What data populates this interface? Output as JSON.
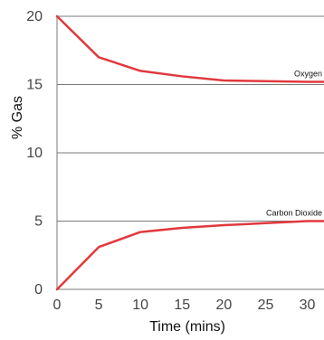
{
  "chart_data": {
    "type": "line",
    "title": "",
    "xlabel": "Time (mins)",
    "ylabel": "% Gas",
    "xlim": [
      0,
      32
    ],
    "ylim": [
      0,
      20
    ],
    "xticks": [
      0,
      5,
      10,
      15,
      20,
      25,
      30
    ],
    "yticks": [
      0,
      5,
      10,
      15,
      20
    ],
    "grid": "horizontal",
    "series": [
      {
        "name": "Oxygen",
        "label_text": "Oxygen",
        "color": "#e0393e",
        "x": [
          0,
          5,
          10,
          15,
          20,
          25,
          30,
          32
        ],
        "y": [
          20,
          17,
          16,
          15.6,
          15.3,
          15.25,
          15.2,
          15.2
        ]
      },
      {
        "name": "Carbon Dioxide",
        "label_text": "Carbon Dioxide",
        "color": "#e0393e",
        "x": [
          0,
          5,
          10,
          15,
          20,
          25,
          30,
          32
        ],
        "y": [
          0,
          3.1,
          4.2,
          4.5,
          4.7,
          4.85,
          5,
          5
        ]
      }
    ]
  }
}
